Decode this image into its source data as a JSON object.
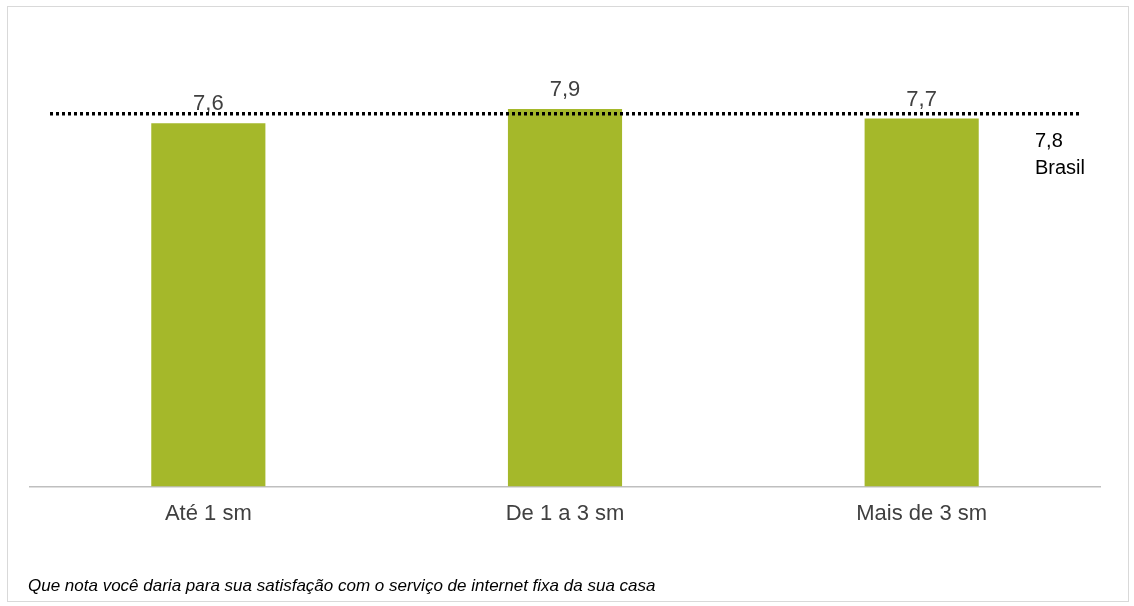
{
  "chart_data": {
    "type": "bar",
    "categories": [
      "Até 1 sm",
      "De 1 a 3 sm",
      "Mais de 3 sm"
    ],
    "values": [
      7.6,
      7.9,
      7.7
    ],
    "color": "#a5b82a",
    "value_labels": [
      "7,6",
      "7,9",
      "7,7"
    ],
    "ref_lines": [
      {
        "axis": "y",
        "value": 7.8,
        "label": "7,8\nBrasil",
        "color": "#000000",
        "line_style": "dotted"
      }
    ],
    "annotations": [
      "Que nota você daria para sua satisfação com o serviço de internet fixa da sua casa"
    ],
    "legend": false
  }
}
